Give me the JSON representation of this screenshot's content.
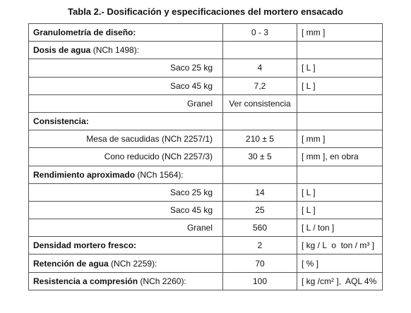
{
  "title": "Tabla 2.- Dosificación y especificaciones del mortero ensacado",
  "table": {
    "rows": [
      {
        "label": "Granulometría de diseño:",
        "value": "0 - 3",
        "unit": "[ mm ]"
      },
      {
        "label": "Dosis de agua",
        "note": "(NCh 1498):"
      },
      {
        "sublabel": "Saco 25 kg",
        "value": "4",
        "unit": "[ L ]"
      },
      {
        "sublabel": "Saco 45 kg",
        "value": "7,2",
        "unit": "[ L ]"
      },
      {
        "sublabel": "Granel",
        "value": "Ver consistencia"
      },
      {
        "label": "Consistencia:"
      },
      {
        "sublabel": "Mesa de sacudidas (NCh 2257/1)",
        "value": "210 ± 5",
        "unit": "[ mm ]"
      },
      {
        "sublabel": "Cono reducido (NCh 2257/3)",
        "value": "30 ± 5",
        "unit": "[ mm ], en obra"
      },
      {
        "label": "Rendimiento aproximado",
        "note": "(NCh 1564):"
      },
      {
        "sublabel": "Saco 25 kg",
        "value": "14",
        "unit": "[ L ]"
      },
      {
        "sublabel": "Saco 45 kg",
        "value": "25",
        "unit": "[ L ]"
      },
      {
        "sublabel": "Granel",
        "value": "560",
        "unit": "[ L / ton ]"
      },
      {
        "label": "Densidad mortero fresco:",
        "value": "2",
        "unit": "[ kg / L  o  ton / m³ ]"
      },
      {
        "label": "Retención de agua",
        "note": "(NCh 2259):",
        "value": "70",
        "unit": "[ % ]"
      },
      {
        "label": "Resistencia a compresión",
        "note": "(NCh 2260):",
        "value": "100",
        "unit": "[ kg /cm² ],  AQL 4%"
      }
    ]
  }
}
